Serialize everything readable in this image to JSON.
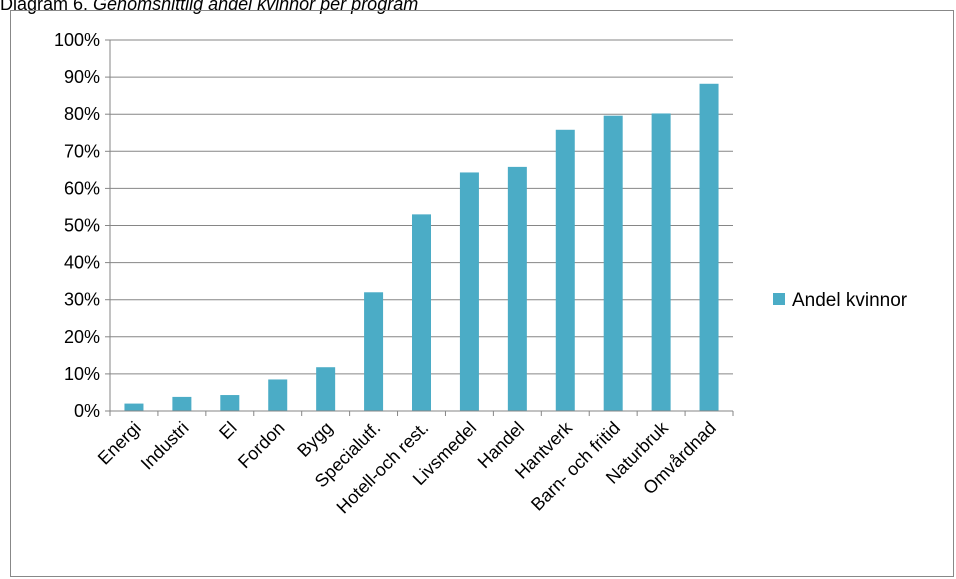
{
  "caption": {
    "prefix": "Diagram 6. ",
    "title": "Genomsnittlig andel kvinnor per program"
  },
  "colors": {
    "bar": "#4bacc6",
    "grid": "#868686",
    "axis": "#868686"
  },
  "chart_data": {
    "type": "bar",
    "title": "",
    "xlabel": "",
    "ylabel": "",
    "ylim": [
      0,
      100
    ],
    "y_unit": "%",
    "y_ticks": [
      "0%",
      "10%",
      "20%",
      "30%",
      "40%",
      "50%",
      "60%",
      "70%",
      "80%",
      "90%",
      "100%"
    ],
    "grid": true,
    "legend_position": "right",
    "categories": [
      "Energi",
      "Industri",
      "El",
      "Fordon",
      "Bygg",
      "Specialutf.",
      "Hotell-och rest.",
      "Livsmedel",
      "Handel",
      "Hantverk",
      "Barn- och fritid",
      "Naturbruk",
      "Omvårdnad"
    ],
    "series": [
      {
        "name": "Andel kvinnor",
        "values": [
          2,
          3.8,
          4.3,
          8.5,
          11.8,
          32,
          53,
          64.3,
          65.8,
          75.8,
          79.6,
          80.2,
          88.2
        ]
      }
    ]
  }
}
